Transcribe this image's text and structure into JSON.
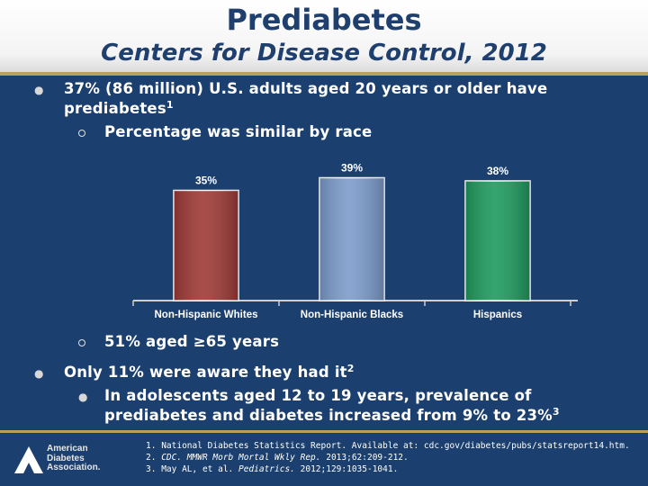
{
  "header": {
    "title": "Prediabetes",
    "subtitle": "Centers for Disease Control, 2012"
  },
  "bullets": {
    "b1_line1": "37% (86 million) U.S. adults aged 20 years or older have",
    "b1_line2": "prediabetes",
    "b1_sup": "1",
    "b1_sub1": "Percentage was similar by race",
    "b1_sub2": "51% aged ≥65 years",
    "b2_text": "Only 11% were aware they had it",
    "b2_sup": "2",
    "b2_sub1_line1": "In adolescents aged 12 to 19 years,  prevalence of",
    "b2_sub1_line2": "prediabetes and diabetes increased from 9% to 23%",
    "b2_sub1_sup": "3"
  },
  "chart_data": {
    "type": "bar",
    "categories": [
      "Non-Hispanic Whites",
      "Non-Hispanic Blacks",
      "Hispanics"
    ],
    "values": [
      35,
      39,
      38
    ],
    "data_labels": [
      "35%",
      "39%",
      "38%"
    ],
    "colors": [
      "#9e3a37",
      "#7b9ccc",
      "#1f9a5e"
    ],
    "ylim": [
      0,
      40
    ],
    "title": "",
    "xlabel": "",
    "ylabel": ""
  },
  "references": [
    {
      "num": "1.",
      "text": "National Diabetes Statistics Report. Available at: cdc.gov/diabetes/pubs/statsreport14.htm."
    },
    {
      "num": "2.",
      "pre": "",
      "ital": "CDC. MMWR Morb Mortal Wkly Rep.",
      "post": " 2013;62:209-212."
    },
    {
      "num": "3.",
      "pre": "May AL, et al. ",
      "ital": "Pediatrics.",
      "post": " 2012;129:1035-1041."
    }
  ],
  "logo": {
    "line1": "American",
    "line2": "Diabetes",
    "line3": "Association."
  },
  "colors": {
    "background": "#1b3f6e",
    "title": "#1f3f6e",
    "accent_line": "#b8a15e"
  }
}
